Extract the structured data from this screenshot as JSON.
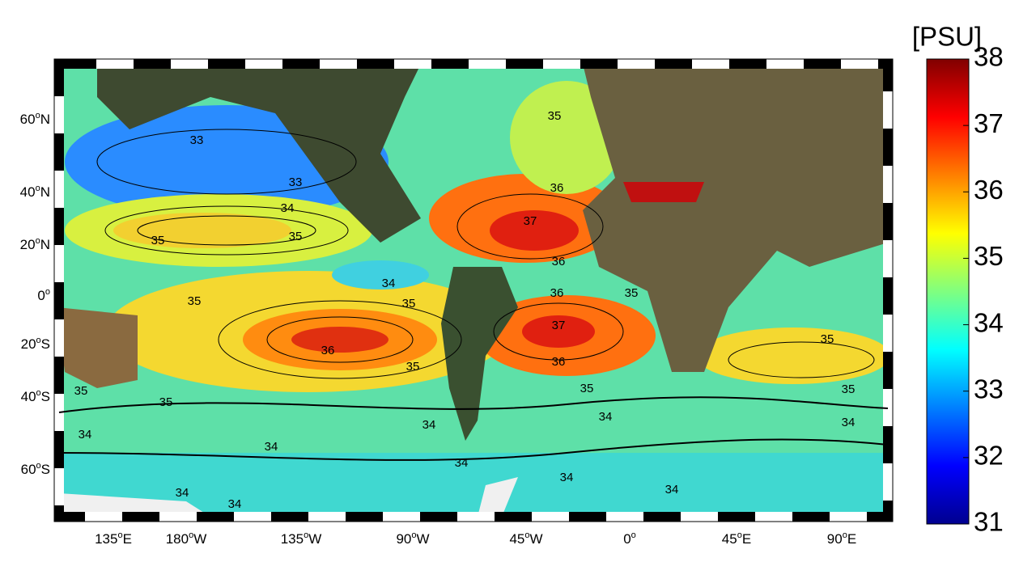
{
  "colorbar": {
    "title": "[PSU]",
    "ylim": [
      31,
      38
    ],
    "yticks": [
      31,
      32,
      33,
      34,
      35,
      36,
      37,
      38
    ]
  },
  "degree_mark": "o",
  "x_labels": [
    {
      "num": "135",
      "hemi": "E"
    },
    {
      "num": "180",
      "hemi": "W"
    },
    {
      "num": "135",
      "hemi": "W"
    },
    {
      "num": "90",
      "hemi": "W"
    },
    {
      "num": "45",
      "hemi": "W"
    },
    {
      "num": "0",
      "hemi": ""
    },
    {
      "num": "45",
      "hemi": "E"
    },
    {
      "num": "90",
      "hemi": "E"
    }
  ],
  "y_labels": [
    {
      "num": "60",
      "hemi": "N"
    },
    {
      "num": "40",
      "hemi": "N"
    },
    {
      "num": "20",
      "hemi": "N"
    },
    {
      "num": "0",
      "hemi": ""
    },
    {
      "num": "20",
      "hemi": "S"
    },
    {
      "num": "40",
      "hemi": "S"
    },
    {
      "num": "60",
      "hemi": "S"
    }
  ],
  "contour_labels": [
    33,
    33,
    34,
    35,
    35,
    35,
    34,
    35,
    36,
    35,
    35,
    35,
    34,
    34,
    36,
    37,
    36,
    35,
    36,
    37,
    36,
    35,
    34,
    35,
    35,
    34,
    34,
    34,
    34,
    34,
    34,
    34,
    35
  ]
}
